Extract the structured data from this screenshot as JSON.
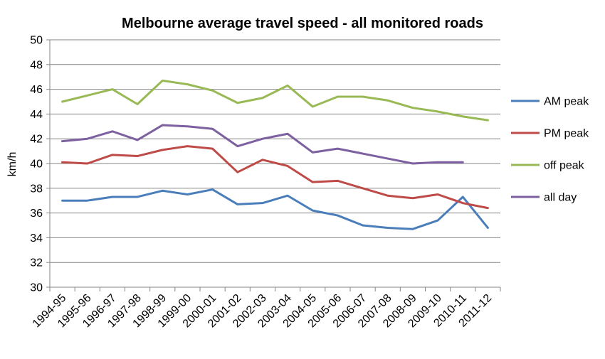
{
  "chart_data": {
    "type": "line",
    "title": "Melbourne average travel speed - all monitored roads",
    "xlabel": "",
    "ylabel": "km/h",
    "ylim": [
      30,
      50
    ],
    "yticks": [
      "30",
      "32",
      "34",
      "36",
      "38",
      "40",
      "42",
      "44",
      "46",
      "48",
      "50"
    ],
    "grid": true,
    "legend": "right",
    "categories": [
      "1994-95",
      "1995-96",
      "1996-97",
      "1997-98",
      "1998-99",
      "1999-00",
      "2000-01",
      "2001-02",
      "2002-03",
      "2003-04",
      "2004-05",
      "2005-06",
      "2006-07",
      "2007-08",
      "2008-09",
      "2009-10",
      "2010-11",
      "2011-12"
    ],
    "series": [
      {
        "name": "AM peak",
        "color": "#4a7ebb",
        "values": [
          37.0,
          37.0,
          37.3,
          37.3,
          37.8,
          37.5,
          37.9,
          36.7,
          36.8,
          37.4,
          36.2,
          35.8,
          35.0,
          34.8,
          34.7,
          35.4,
          37.3,
          34.8
        ]
      },
      {
        "name": "PM peak",
        "color": "#be4b48",
        "values": [
          40.1,
          40.0,
          40.7,
          40.6,
          41.1,
          41.4,
          41.2,
          39.3,
          40.3,
          39.8,
          38.5,
          38.6,
          38.0,
          37.4,
          37.2,
          37.5,
          36.8,
          36.4
        ]
      },
      {
        "name": "off peak",
        "color": "#98b954",
        "values": [
          45.0,
          45.5,
          46.0,
          44.8,
          46.7,
          46.4,
          45.9,
          44.9,
          45.3,
          46.3,
          44.6,
          45.4,
          45.4,
          45.1,
          44.5,
          44.2,
          43.8,
          43.5
        ]
      },
      {
        "name": "all day",
        "color": "#7d60a0",
        "values": [
          41.8,
          42.0,
          42.6,
          41.9,
          43.1,
          43.0,
          42.8,
          41.4,
          42.0,
          42.4,
          40.9,
          41.2,
          40.8,
          40.4,
          40.0,
          40.1,
          40.1,
          null
        ]
      }
    ]
  }
}
